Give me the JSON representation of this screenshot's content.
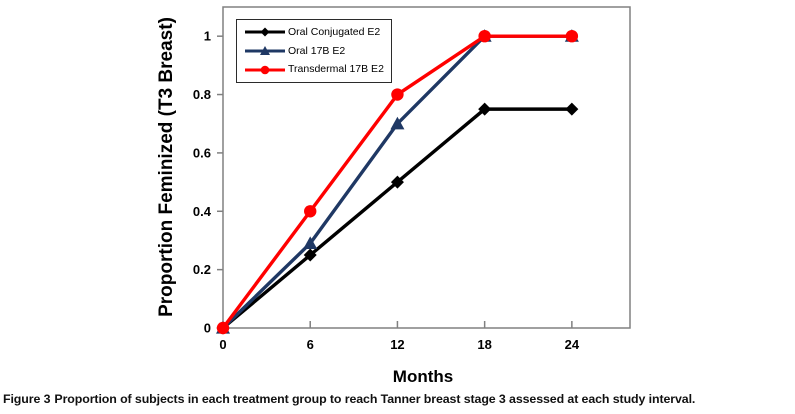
{
  "figure": {
    "caption_label": "Figure 3",
    "caption_text": "Proportion of subjects in each treatment group to reach Tanner breast stage 3 assessed at each study interval."
  },
  "chart_data": {
    "type": "line",
    "title": "",
    "xlabel": "Months",
    "ylabel": "Proportion Feminized (T3 Breast)",
    "x": [
      0,
      6,
      12,
      18,
      24
    ],
    "xticks": [
      0,
      6,
      12,
      18,
      24
    ],
    "yticks": [
      0,
      0.2,
      0.4,
      0.6,
      0.8,
      1
    ],
    "xlim": [
      0,
      28
    ],
    "ylim": [
      0,
      1.1
    ],
    "grid": false,
    "legend_position": "top-left",
    "series": [
      {
        "name": "Oral Conjugated E2",
        "marker": "diamond",
        "color": "#000000",
        "values": [
          0,
          0.25,
          0.5,
          0.75,
          0.75
        ]
      },
      {
        "name": "Oral 17B E2",
        "marker": "triangle",
        "color": "#1f3864",
        "values": [
          0,
          0.29,
          0.7,
          1,
          1
        ]
      },
      {
        "name": "Transdermal 17B E2",
        "marker": "circle",
        "color": "#ff0000",
        "values": [
          0,
          0.4,
          0.8,
          1,
          1
        ]
      }
    ],
    "colors": {
      "axis": "#808080",
      "tick_text": "#000000",
      "legend_border": "#2b2b2b",
      "background": "#ffffff"
    }
  }
}
